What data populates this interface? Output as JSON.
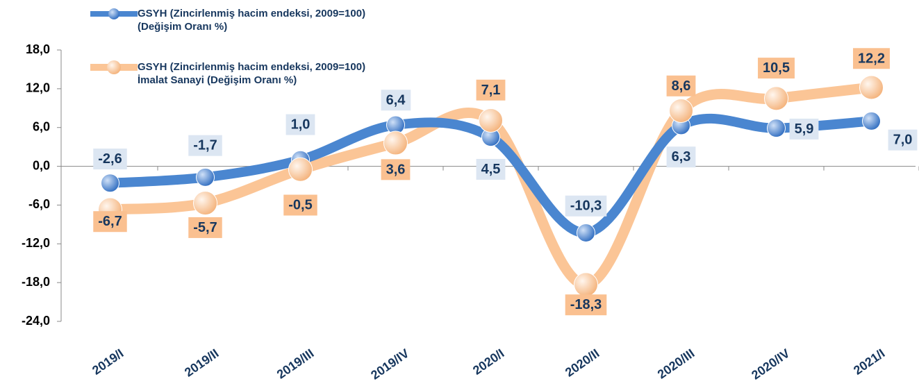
{
  "chart_data": {
    "type": "line",
    "categories": [
      "2019/I",
      "2019/II",
      "2019/III",
      "2019/IV",
      "2020/I",
      "2020/II",
      "2020/III",
      "2020/IV",
      "2021/I"
    ],
    "series": [
      {
        "name": "GSYH (Zincirlenmiş hacim endeksi, 2009=100) (Değişim Oranı %)",
        "color": "#4a86d0",
        "values": [
          -2.6,
          -1.7,
          1.0,
          6.4,
          4.5,
          -10.3,
          6.3,
          5.9,
          7.0
        ],
        "value_labels": [
          "-2,6",
          "-1,7",
          "1,0",
          "6,4",
          "4,5",
          "-10,3",
          "6,3",
          "5,9",
          "7,0"
        ]
      },
      {
        "name": "GSYH (Zincirlenmiş hacim endeksi, 2009=100) İmalat Sanayi (Değişim Oranı %)",
        "color": "#fbc596",
        "values": [
          -6.7,
          -5.7,
          -0.5,
          3.6,
          7.1,
          -18.3,
          8.6,
          10.5,
          12.2
        ],
        "value_labels": [
          "-6,7",
          "-5,7",
          "-0,5",
          "3,6",
          "7,1",
          "-18,3",
          "8,6",
          "10,5",
          "12,2"
        ]
      }
    ],
    "ylim": [
      -24,
      18
    ],
    "yticks": [
      {
        "value": -24,
        "label": "-24,0"
      },
      {
        "value": -18,
        "label": "-18,0"
      },
      {
        "value": -12,
        "label": "-12,0"
      },
      {
        "value": -6,
        "label": "-6,0"
      },
      {
        "value": 0,
        "label": "0,0"
      },
      {
        "value": 6,
        "label": "6,0"
      },
      {
        "value": 12,
        "label": "12,0"
      },
      {
        "value": 18,
        "label": "18,0"
      }
    ]
  }
}
